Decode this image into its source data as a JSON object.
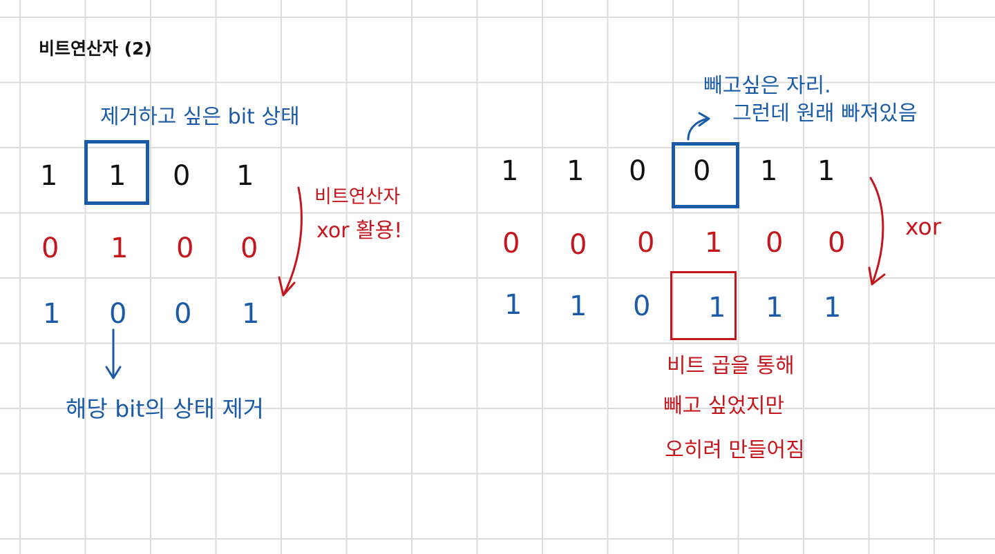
{
  "title": "비트연산자 (2)",
  "colors": {
    "ink": "#111111",
    "blue": "#1b5aa6",
    "red": "#c4161c",
    "grid": "#dcdcdc"
  },
  "left": {
    "box_label": "제거하고 싶은 bit 상태",
    "row_input": [
      "1",
      "1",
      "0",
      "1"
    ],
    "row_mask": [
      "0",
      "1",
      "0",
      "0"
    ],
    "row_result": [
      "1",
      "0",
      "0",
      "1"
    ],
    "side_note": [
      "비트연산자",
      "xor 활용!"
    ],
    "bottom_note": "해당 bit의 상태 제거"
  },
  "right": {
    "top_note": [
      "빼고싶은 자리.",
      "그런데 원래 빠져있음"
    ],
    "row_input": [
      "1",
      "1",
      "0",
      "0",
      "1",
      "1"
    ],
    "row_mask": [
      "0",
      "0",
      "0",
      "1",
      "0",
      "0"
    ],
    "row_result": [
      "1",
      "1",
      "0",
      "1",
      "1",
      "1"
    ],
    "side_note": "xor",
    "bottom_note": [
      "비트 곱을 통해",
      "빼고 싶었지만",
      "오히려 만들어짐"
    ]
  }
}
